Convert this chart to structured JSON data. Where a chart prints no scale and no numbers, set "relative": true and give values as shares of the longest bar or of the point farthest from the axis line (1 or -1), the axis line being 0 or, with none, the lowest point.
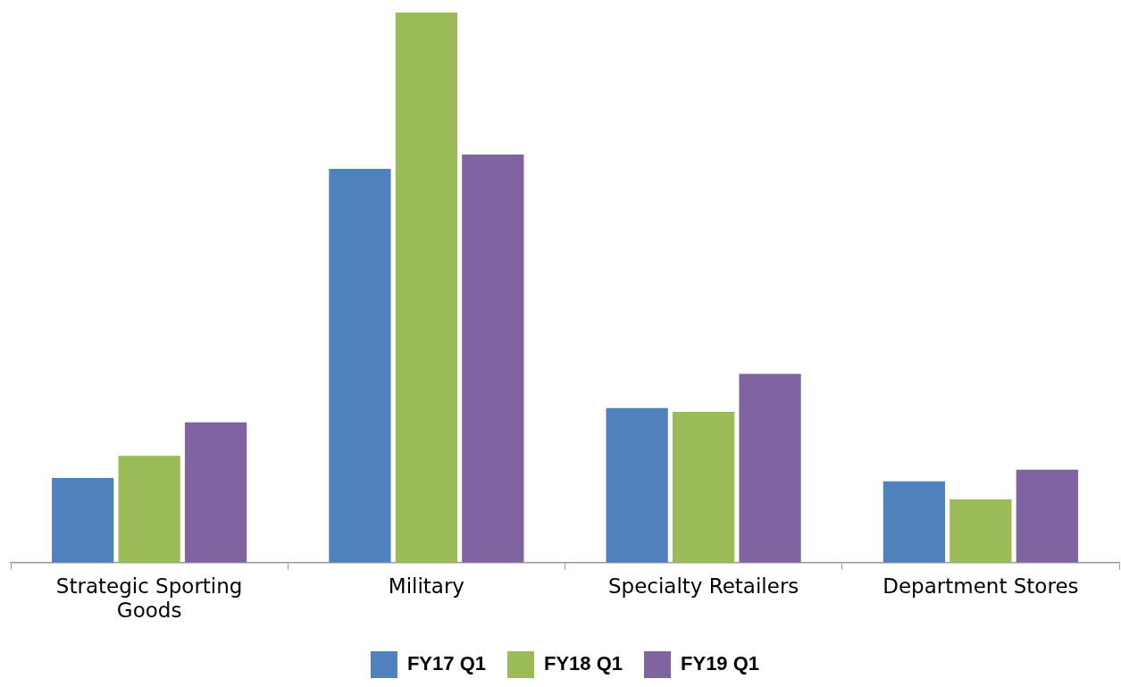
{
  "chart_data": {
    "type": "bar",
    "relative": true,
    "categories": [
      "Strategic Sporting Goods",
      "Military",
      "Specialty Retailers",
      "Department Stores"
    ],
    "series": [
      {
        "name": "FY17 Q1",
        "color": "#4f81bd",
        "values": [
          0.154,
          0.716,
          0.281,
          0.148
        ]
      },
      {
        "name": "FY18 Q1",
        "color": "#9bbb59",
        "values": [
          0.194,
          1,
          0.274,
          0.115
        ]
      },
      {
        "name": "FY19 Q1",
        "color": "#8064a2",
        "values": [
          0.255,
          0.742,
          0.343,
          0.169
        ]
      }
    ],
    "legend": "bottom",
    "grid": false
  }
}
